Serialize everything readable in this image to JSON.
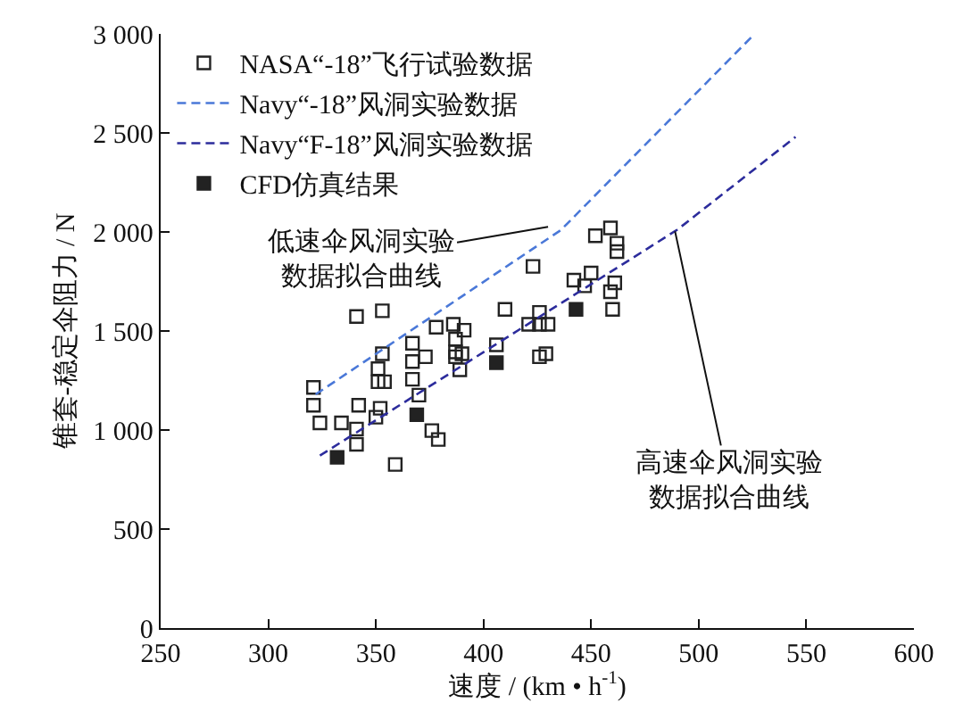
{
  "chart_data": {
    "type": "scatter",
    "xlabel": "速度 / (km • h$^{-1}$)",
    "ylabel": "锥套-稳定伞阻力 / N",
    "xlim": [
      250,
      600
    ],
    "xticks": [
      250,
      300,
      350,
      400,
      450,
      500,
      550,
      600
    ],
    "ylim": [
      0,
      3000
    ],
    "yticks": [
      0,
      500,
      {
        "value": 1000,
        "label": "1 000"
      },
      {
        "value": 1500,
        "label": "1 500"
      },
      {
        "value": 2000,
        "label": "2 000"
      },
      {
        "value": 2500,
        "label": "2 500"
      },
      {
        "value": 3000,
        "label": "3 000"
      }
    ],
    "legend": "top left",
    "series": [
      {
        "name": "NASA“-18”飞行试验数据",
        "marker": "square",
        "color": "#222222",
        "x": [
          321,
          321,
          324,
          334,
          341,
          341,
          342,
          341,
          353,
          350,
          352,
          351,
          354,
          351,
          353,
          359,
          367,
          367,
          367,
          370,
          373,
          376,
          379,
          378,
          386,
          387,
          387,
          387,
          389,
          391,
          390,
          406,
          410,
          423,
          421,
          426,
          426,
          430,
          426,
          429,
          442,
          447,
          450,
          452,
          459,
          462,
          462,
          461,
          459,
          460
        ],
        "values": [
          1215,
          1125,
          1036,
          1036,
          1005,
          928,
          1125,
          1573,
          1602,
          1065,
          1110,
          1244,
          1244,
          1310,
          1385,
          826,
          1438,
          1346,
          1256,
          1176,
          1370,
          997,
          952,
          1519,
          1534,
          1459,
          1394,
          1370,
          1304,
          1504,
          1385,
          1430,
          1609,
          1826,
          1534,
          1594,
          1534,
          1534,
          1370,
          1385,
          1757,
          1728,
          1793,
          1981,
          2020,
          1943,
          1901,
          1743,
          1698,
          1609
        ]
      },
      {
        "name": "Navy“-18”风洞实验数据",
        "type": "line",
        "line_style": "dashed",
        "marker": "none",
        "color": "#4a78d8",
        "x": [
          322,
          436,
          526
        ],
        "values": [
          1180,
          2010,
          3000
        ]
      },
      {
        "name": "Navy“F-18”风洞实验数据",
        "type": "line",
        "line_style": "dashed",
        "marker": "none",
        "color": "#2c2c9c",
        "x": [
          324,
          490,
          545
        ],
        "values": [
          871,
          2011,
          2480
        ]
      },
      {
        "name": "CFD仿真结果",
        "marker": "square",
        "color": "#222222",
        "x": [
          332,
          369,
          406,
          443
        ],
        "values": [
          862,
          1077,
          1340,
          1609
        ]
      }
    ],
    "annotations": [
      {
        "text": "低速伞风洞实验数据拟合曲线",
        "x": 430,
        "y": 2026
      },
      {
        "text": "高速伞风洞实验数据拟合曲线",
        "x": 489,
        "y": 2003
      }
    ]
  }
}
